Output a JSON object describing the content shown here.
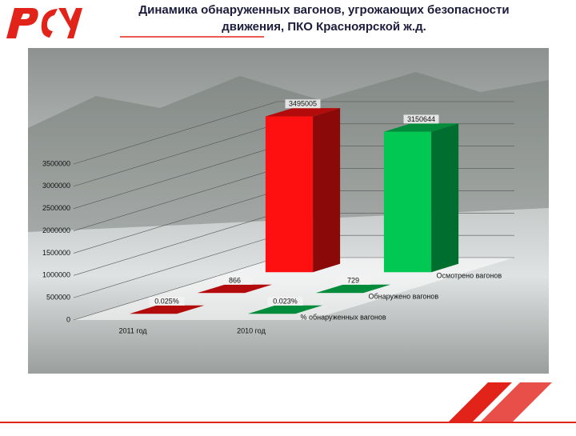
{
  "chart_data": {
    "type": "bar3d",
    "title": [
      "Динамика обнаруженных вагонов, угрожающих безопасности",
      "движения, ПКО Красноярской ж.д."
    ],
    "categories": [
      "2011 год",
      "2010 год"
    ],
    "category_colors": [
      "#ff1010",
      "#00c853"
    ],
    "series": [
      {
        "name": "Осмотрено вагонов",
        "values": [
          3495005,
          3150644
        ]
      },
      {
        "name": "Обнаружено вагонов",
        "values": [
          866,
          729
        ]
      },
      {
        "name": "% обнаруженных вагонов",
        "values": [
          0.025,
          0.023
        ],
        "value_labels": [
          "0.025%",
          "0.023%"
        ]
      }
    ],
    "ylim": [
      0,
      3500000
    ],
    "yticks": [
      0,
      500000,
      1000000,
      1500000,
      2000000,
      2500000,
      3000000,
      3500000
    ],
    "grid": true
  }
}
